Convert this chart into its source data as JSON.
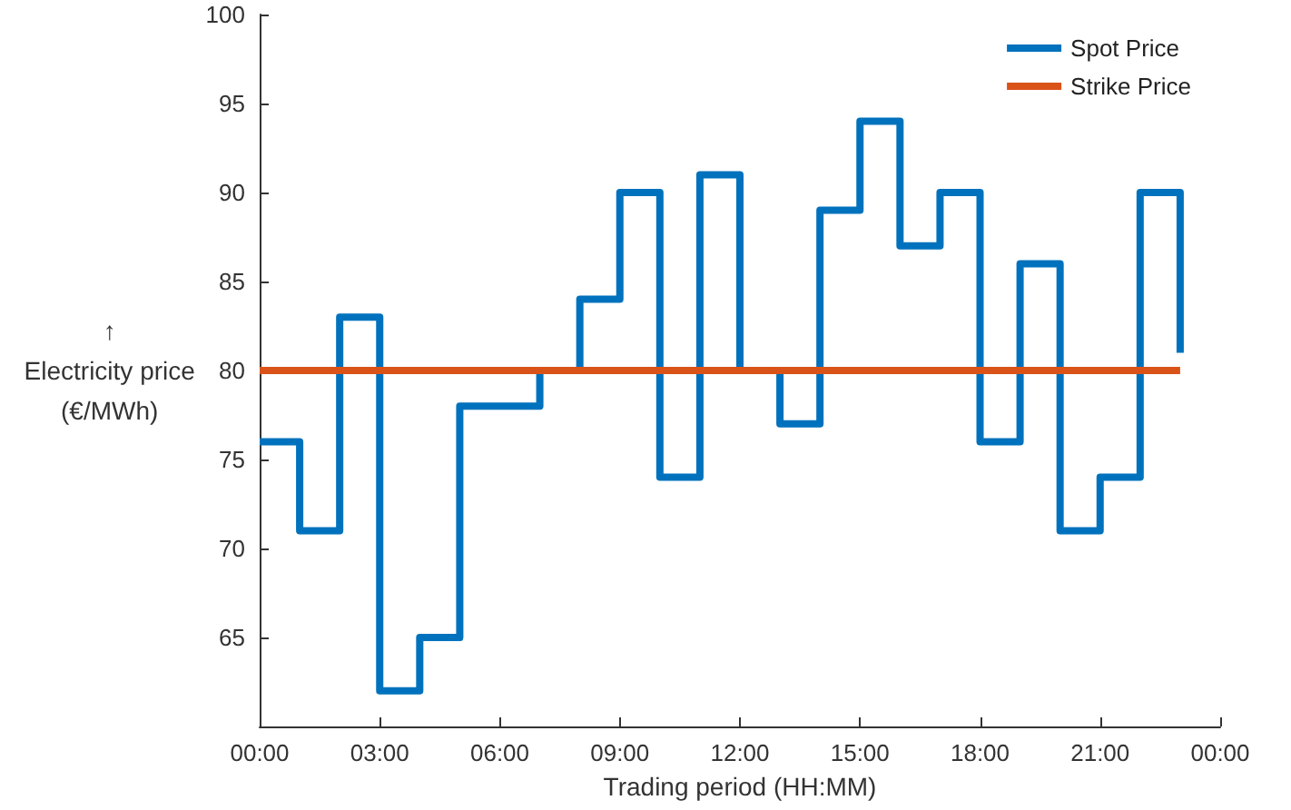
{
  "chart_data": {
    "type": "line",
    "xlabel": "Trading period (HH:MM)",
    "ylabel": "↑\nElectricity price\n(€/MWh)",
    "xlim": [
      0,
      24
    ],
    "xticks": [
      {
        "value": 0,
        "label": "00:00"
      },
      {
        "value": 3,
        "label": "03:00"
      },
      {
        "value": 6,
        "label": "06:00"
      },
      {
        "value": 9,
        "label": "09:00"
      },
      {
        "value": 12,
        "label": "12:00"
      },
      {
        "value": 15,
        "label": "15:00"
      },
      {
        "value": 18,
        "label": "18:00"
      },
      {
        "value": 21,
        "label": "21:00"
      },
      {
        "value": 24,
        "label": "00:00"
      }
    ],
    "ylim": [
      60,
      100
    ],
    "yticks": [
      65,
      70,
      75,
      80,
      85,
      90,
      95,
      100
    ],
    "grid": false,
    "legend": "top right",
    "marker": "none",
    "series": [
      {
        "name": "Spot Price",
        "type": "step",
        "color": "#0072bd",
        "x": [
          0,
          1,
          2,
          3,
          4,
          5,
          6,
          7,
          8,
          9,
          10,
          11,
          12,
          13,
          14,
          15,
          16,
          17,
          18,
          19,
          20,
          21,
          22,
          23
        ],
        "values": [
          76,
          71,
          83,
          62,
          65,
          78,
          78,
          80,
          84,
          90,
          74,
          91,
          80,
          77,
          89,
          94,
          87,
          90,
          76,
          86,
          71,
          74,
          90,
          81
        ]
      },
      {
        "name": "Strike Price",
        "color": "#d95319",
        "x": [
          0,
          23
        ],
        "values": [
          80,
          80
        ]
      }
    ]
  }
}
